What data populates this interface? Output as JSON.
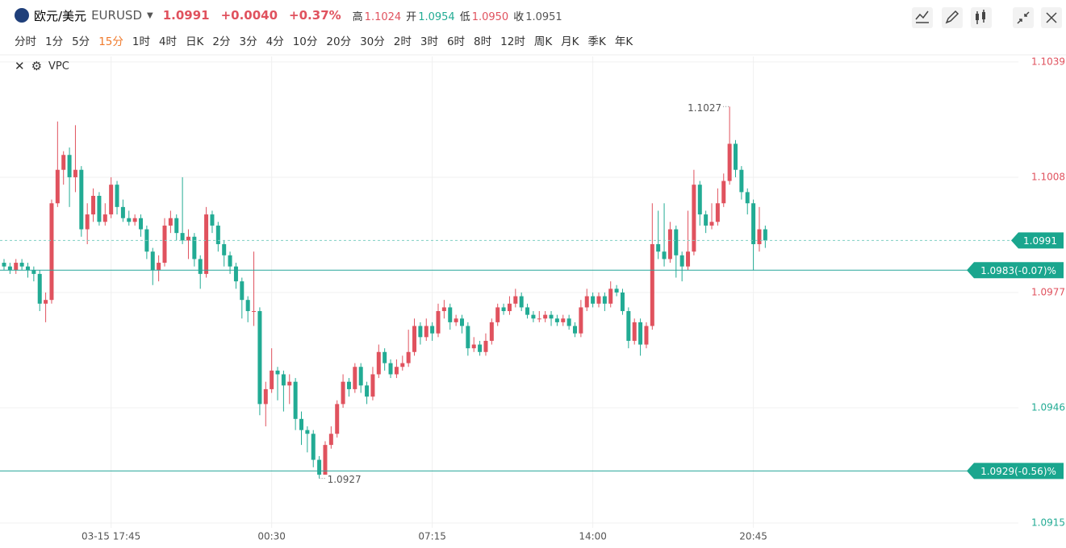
{
  "header": {
    "name": "欧元/美元",
    "symbol": "EURUSD",
    "price": "1.0991",
    "change": "+0.0040",
    "change_pct": "+0.37%",
    "stats": [
      {
        "label": "高",
        "value": "1.1024"
      },
      {
        "label": "开",
        "value": "1.0954"
      },
      {
        "label": "低",
        "value": "1.0950"
      },
      {
        "label": "收",
        "value": "1.0951"
      }
    ]
  },
  "timeframes": [
    "分时",
    "1分",
    "5分",
    "15分",
    "1时",
    "4时",
    "日K",
    "2分",
    "3分",
    "4分",
    "10分",
    "20分",
    "30分",
    "2时",
    "3时",
    "6时",
    "8时",
    "12时",
    "周K",
    "月K",
    "季K",
    "年K"
  ],
  "active_timeframe": "15分",
  "indicator": "VPC",
  "chart_data": {
    "type": "candlestick",
    "up_color": "#e0525e",
    "down_color": "#22ab94",
    "xlim": [
      -0.68,
      170.56
    ],
    "xticks": [
      {
        "value": 18,
        "label": "03-15 17:45"
      },
      {
        "value": 45,
        "label": "00:30"
      },
      {
        "value": 72,
        "label": "07:15"
      },
      {
        "value": 99,
        "label": "14:00"
      },
      {
        "value": 126,
        "label": "20:45"
      }
    ],
    "ylim": [
      1.09137,
      1.10405
    ],
    "yticks": [
      1.0915,
      1.0946,
      1.0977,
      1.1008,
      1.1039
    ],
    "grid": true,
    "last_price": 1.0991,
    "price_lines": [
      {
        "value": 1.0983,
        "label": "1.0983(-0.07)%"
      },
      {
        "value": 1.0929,
        "label": "1.0929(-0.56)%"
      }
    ],
    "ohlc": [
      [
        1.0985,
        1.0986,
        1.0983,
        1.0984
      ],
      [
        1.0984,
        1.0985,
        1.0982,
        1.0983
      ],
      [
        1.0983,
        1.0986,
        1.0982,
        1.0985
      ],
      [
        1.0985,
        1.0986,
        1.0983,
        1.0984
      ],
      [
        1.0984,
        1.0985,
        1.0981,
        1.0983
      ],
      [
        1.0983,
        1.0984,
        1.098,
        1.0982
      ],
      [
        1.0982,
        1.0983,
        1.0972,
        1.0974
      ],
      [
        1.0974,
        1.0977,
        1.0969,
        1.0975
      ],
      [
        1.0975,
        1.1002,
        1.0974,
        1.1001
      ],
      [
        1.1001,
        1.1023,
        1.1,
        1.101
      ],
      [
        1.101,
        1.1015,
        1.1006,
        1.1014
      ],
      [
        1.1014,
        1.1016,
        1.1,
        1.1008
      ],
      [
        1.1008,
        1.1022,
        1.1004,
        1.101
      ],
      [
        1.101,
        1.1011,
        1.0992,
        1.0994
      ],
      [
        1.0994,
        1.1001,
        1.099,
        1.0998
      ],
      [
        1.0998,
        1.1005,
        1.0996,
        1.1003
      ],
      [
        1.1003,
        1.1004,
        1.0995,
        1.0996
      ],
      [
        1.0996,
        1.1001,
        1.0995,
        1.0998
      ],
      [
        1.0998,
        1.1008,
        1.0997,
        1.1006
      ],
      [
        1.1006,
        1.1007,
        1.0998,
        1.1
      ],
      [
        1.1,
        1.1002,
        1.0996,
        1.0997
      ],
      [
        1.0997,
        1.0999,
        1.0995,
        1.0996
      ],
      [
        1.0996,
        1.0998,
        1.0995,
        1.0997
      ],
      [
        1.0997,
        1.0998,
        1.0992,
        1.0994
      ],
      [
        1.0994,
        1.0995,
        1.0986,
        1.0988
      ],
      [
        1.0988,
        1.0989,
        1.0979,
        1.0983
      ],
      [
        1.0983,
        1.0987,
        1.098,
        1.0985
      ],
      [
        1.0985,
        1.0997,
        1.0984,
        1.0995
      ],
      [
        1.0995,
        1.0999,
        1.0993,
        1.0997
      ],
      [
        1.0997,
        1.0998,
        1.0991,
        1.0993
      ],
      [
        1.0993,
        1.1008,
        1.099,
        1.0991
      ],
      [
        1.0991,
        1.0994,
        1.0986,
        1.0992
      ],
      [
        1.0992,
        1.0993,
        1.0984,
        1.0986
      ],
      [
        1.0986,
        1.0987,
        1.0978,
        1.0982
      ],
      [
        1.0982,
        1.1,
        1.0981,
        1.0998
      ],
      [
        1.0998,
        1.0999,
        1.0993,
        1.0995
      ],
      [
        1.0995,
        1.0996,
        1.0988,
        1.099
      ],
      [
        1.099,
        1.0991,
        1.0984,
        1.0987
      ],
      [
        1.0987,
        1.0988,
        1.0982,
        1.0984
      ],
      [
        1.0984,
        1.0985,
        1.0978,
        1.098
      ],
      [
        1.098,
        1.0981,
        1.097,
        1.0975
      ],
      [
        1.0975,
        1.0976,
        1.0969,
        1.0972
      ],
      [
        1.0972,
        1.0988,
        1.0968,
        1.0972
      ],
      [
        1.0972,
        1.0973,
        1.0944,
        1.0947
      ],
      [
        1.0947,
        1.0953,
        1.0941,
        1.0951
      ],
      [
        1.0951,
        1.0962,
        1.095,
        1.0956
      ],
      [
        1.0956,
        1.0957,
        1.0948,
        1.0955
      ],
      [
        1.0955,
        1.0956,
        1.0945,
        1.0952
      ],
      [
        1.0952,
        1.0955,
        1.0947,
        1.0953
      ],
      [
        1.0953,
        1.0954,
        1.094,
        1.0943
      ],
      [
        1.0943,
        1.0945,
        1.0936,
        1.094
      ],
      [
        1.094,
        1.0941,
        1.0934,
        1.0939
      ],
      [
        1.0939,
        1.094,
        1.093,
        1.0932
      ],
      [
        1.0932,
        1.0933,
        1.0927,
        1.0928
      ],
      [
        1.0928,
        1.0937,
        1.0928,
        1.0936
      ],
      [
        1.0936,
        1.0941,
        1.0935,
        1.0939
      ],
      [
        1.0939,
        1.0948,
        1.0938,
        1.0947
      ],
      [
        1.0947,
        1.0955,
        1.0946,
        1.0953
      ],
      [
        1.0953,
        1.0954,
        1.0949,
        1.0951
      ],
      [
        1.0951,
        1.0958,
        1.095,
        1.0957
      ],
      [
        1.0957,
        1.0958,
        1.095,
        1.0952
      ],
      [
        1.0952,
        1.0953,
        1.0947,
        1.0949
      ],
      [
        1.0949,
        1.0957,
        1.0948,
        1.0955
      ],
      [
        1.0955,
        1.0963,
        1.0954,
        1.0961
      ],
      [
        1.0961,
        1.0962,
        1.0956,
        1.0958
      ],
      [
        1.0958,
        1.0959,
        1.0954,
        1.0955
      ],
      [
        1.0955,
        1.0959,
        1.0954,
        1.0957
      ],
      [
        1.0957,
        1.096,
        1.0956,
        1.0958
      ],
      [
        1.0958,
        1.0967,
        1.0957,
        1.0961
      ],
      [
        1.0961,
        1.097,
        1.096,
        1.0968
      ],
      [
        1.0968,
        1.0969,
        1.0963,
        1.0965
      ],
      [
        1.0965,
        1.097,
        1.0964,
        1.0968
      ],
      [
        1.0968,
        1.0969,
        1.0964,
        1.0966
      ],
      [
        1.0966,
        1.0974,
        1.0965,
        1.0972
      ],
      [
        1.0972,
        1.0975,
        1.097,
        1.0973
      ],
      [
        1.0973,
        1.0974,
        1.0967,
        1.0969
      ],
      [
        1.0969,
        1.0971,
        1.0968,
        1.097
      ],
      [
        1.097,
        1.0971,
        1.0966,
        1.0968
      ],
      [
        1.0968,
        1.0969,
        1.096,
        1.0962
      ],
      [
        1.0962,
        1.0965,
        1.0961,
        1.0963
      ],
      [
        1.0963,
        1.0964,
        1.096,
        1.0961
      ],
      [
        1.0961,
        1.0966,
        1.096,
        1.0964
      ],
      [
        1.0964,
        1.097,
        1.0963,
        1.0969
      ],
      [
        1.0969,
        1.0974,
        1.0968,
        1.0973
      ],
      [
        1.0973,
        1.0974,
        1.0971,
        1.0972
      ],
      [
        1.0972,
        1.0976,
        1.0971,
        1.0974
      ],
      [
        1.0974,
        1.0978,
        1.0973,
        1.0976
      ],
      [
        1.0976,
        1.0977,
        1.0972,
        1.0973
      ],
      [
        1.0973,
        1.0974,
        1.097,
        1.0971
      ],
      [
        1.0971,
        1.0972,
        1.0969,
        1.097
      ],
      [
        1.097,
        1.0972,
        1.0969,
        1.097
      ],
      [
        1.097,
        1.0972,
        1.0969,
        1.0971
      ],
      [
        1.0971,
        1.0972,
        1.0968,
        1.097
      ],
      [
        1.097,
        1.0971,
        1.0968,
        1.0969
      ],
      [
        1.0969,
        1.0971,
        1.0968,
        1.097
      ],
      [
        1.097,
        1.0971,
        1.0967,
        1.0968
      ],
      [
        1.0968,
        1.0969,
        1.0965,
        1.0966
      ],
      [
        1.0966,
        1.0975,
        1.0965,
        1.0973
      ],
      [
        1.0973,
        1.0978,
        1.0972,
        1.0976
      ],
      [
        1.0976,
        1.0977,
        1.0973,
        1.0974
      ],
      [
        1.0974,
        1.0977,
        1.0973,
        1.0976
      ],
      [
        1.0976,
        1.0977,
        1.0972,
        1.0974
      ],
      [
        1.0974,
        1.098,
        1.0973,
        1.0978
      ],
      [
        1.0978,
        1.0979,
        1.0976,
        1.0977
      ],
      [
        1.0977,
        1.0978,
        1.0971,
        1.0972
      ],
      [
        1.0972,
        1.0973,
        1.0962,
        1.0964
      ],
      [
        1.0964,
        1.097,
        1.0963,
        1.0969
      ],
      [
        1.0969,
        1.097,
        1.096,
        1.0963
      ],
      [
        1.0963,
        1.0969,
        1.0962,
        1.0968
      ],
      [
        1.0968,
        1.1001,
        1.0967,
        1.099
      ],
      [
        1.099,
        1.0999,
        1.0986,
        1.0988
      ],
      [
        1.0988,
        1.1001,
        1.0984,
        1.0986
      ],
      [
        1.0986,
        1.0996,
        1.0985,
        1.0994
      ],
      [
        1.0994,
        1.0995,
        1.0981,
        1.0987
      ],
      [
        1.0987,
        1.0988,
        1.098,
        1.0984
      ],
      [
        1.0984,
        1.0999,
        1.0983,
        1.0988
      ],
      [
        1.0988,
        1.101,
        1.0987,
        1.1006
      ],
      [
        1.1006,
        1.1007,
        1.0995,
        1.0998
      ],
      [
        1.0998,
        1.0999,
        1.0993,
        1.0995
      ],
      [
        1.0995,
        1.1001,
        1.0994,
        1.0996
      ],
      [
        1.0996,
        1.1005,
        1.0995,
        1.1001
      ],
      [
        1.1001,
        1.1009,
        1.1,
        1.1007
      ],
      [
        1.1007,
        1.1027,
        1.1006,
        1.1017
      ],
      [
        1.1017,
        1.1018,
        1.1008,
        1.101
      ],
      [
        1.101,
        1.1011,
        1.1002,
        1.1004
      ],
      [
        1.1004,
        1.1005,
        1.0998,
        1.1001
      ],
      [
        1.1001,
        1.1002,
        1.0983,
        1.099
      ],
      [
        1.099,
        1.1,
        1.0988,
        1.0994
      ],
      [
        1.0994,
        1.0995,
        1.0989,
        1.0991
      ]
    ]
  }
}
